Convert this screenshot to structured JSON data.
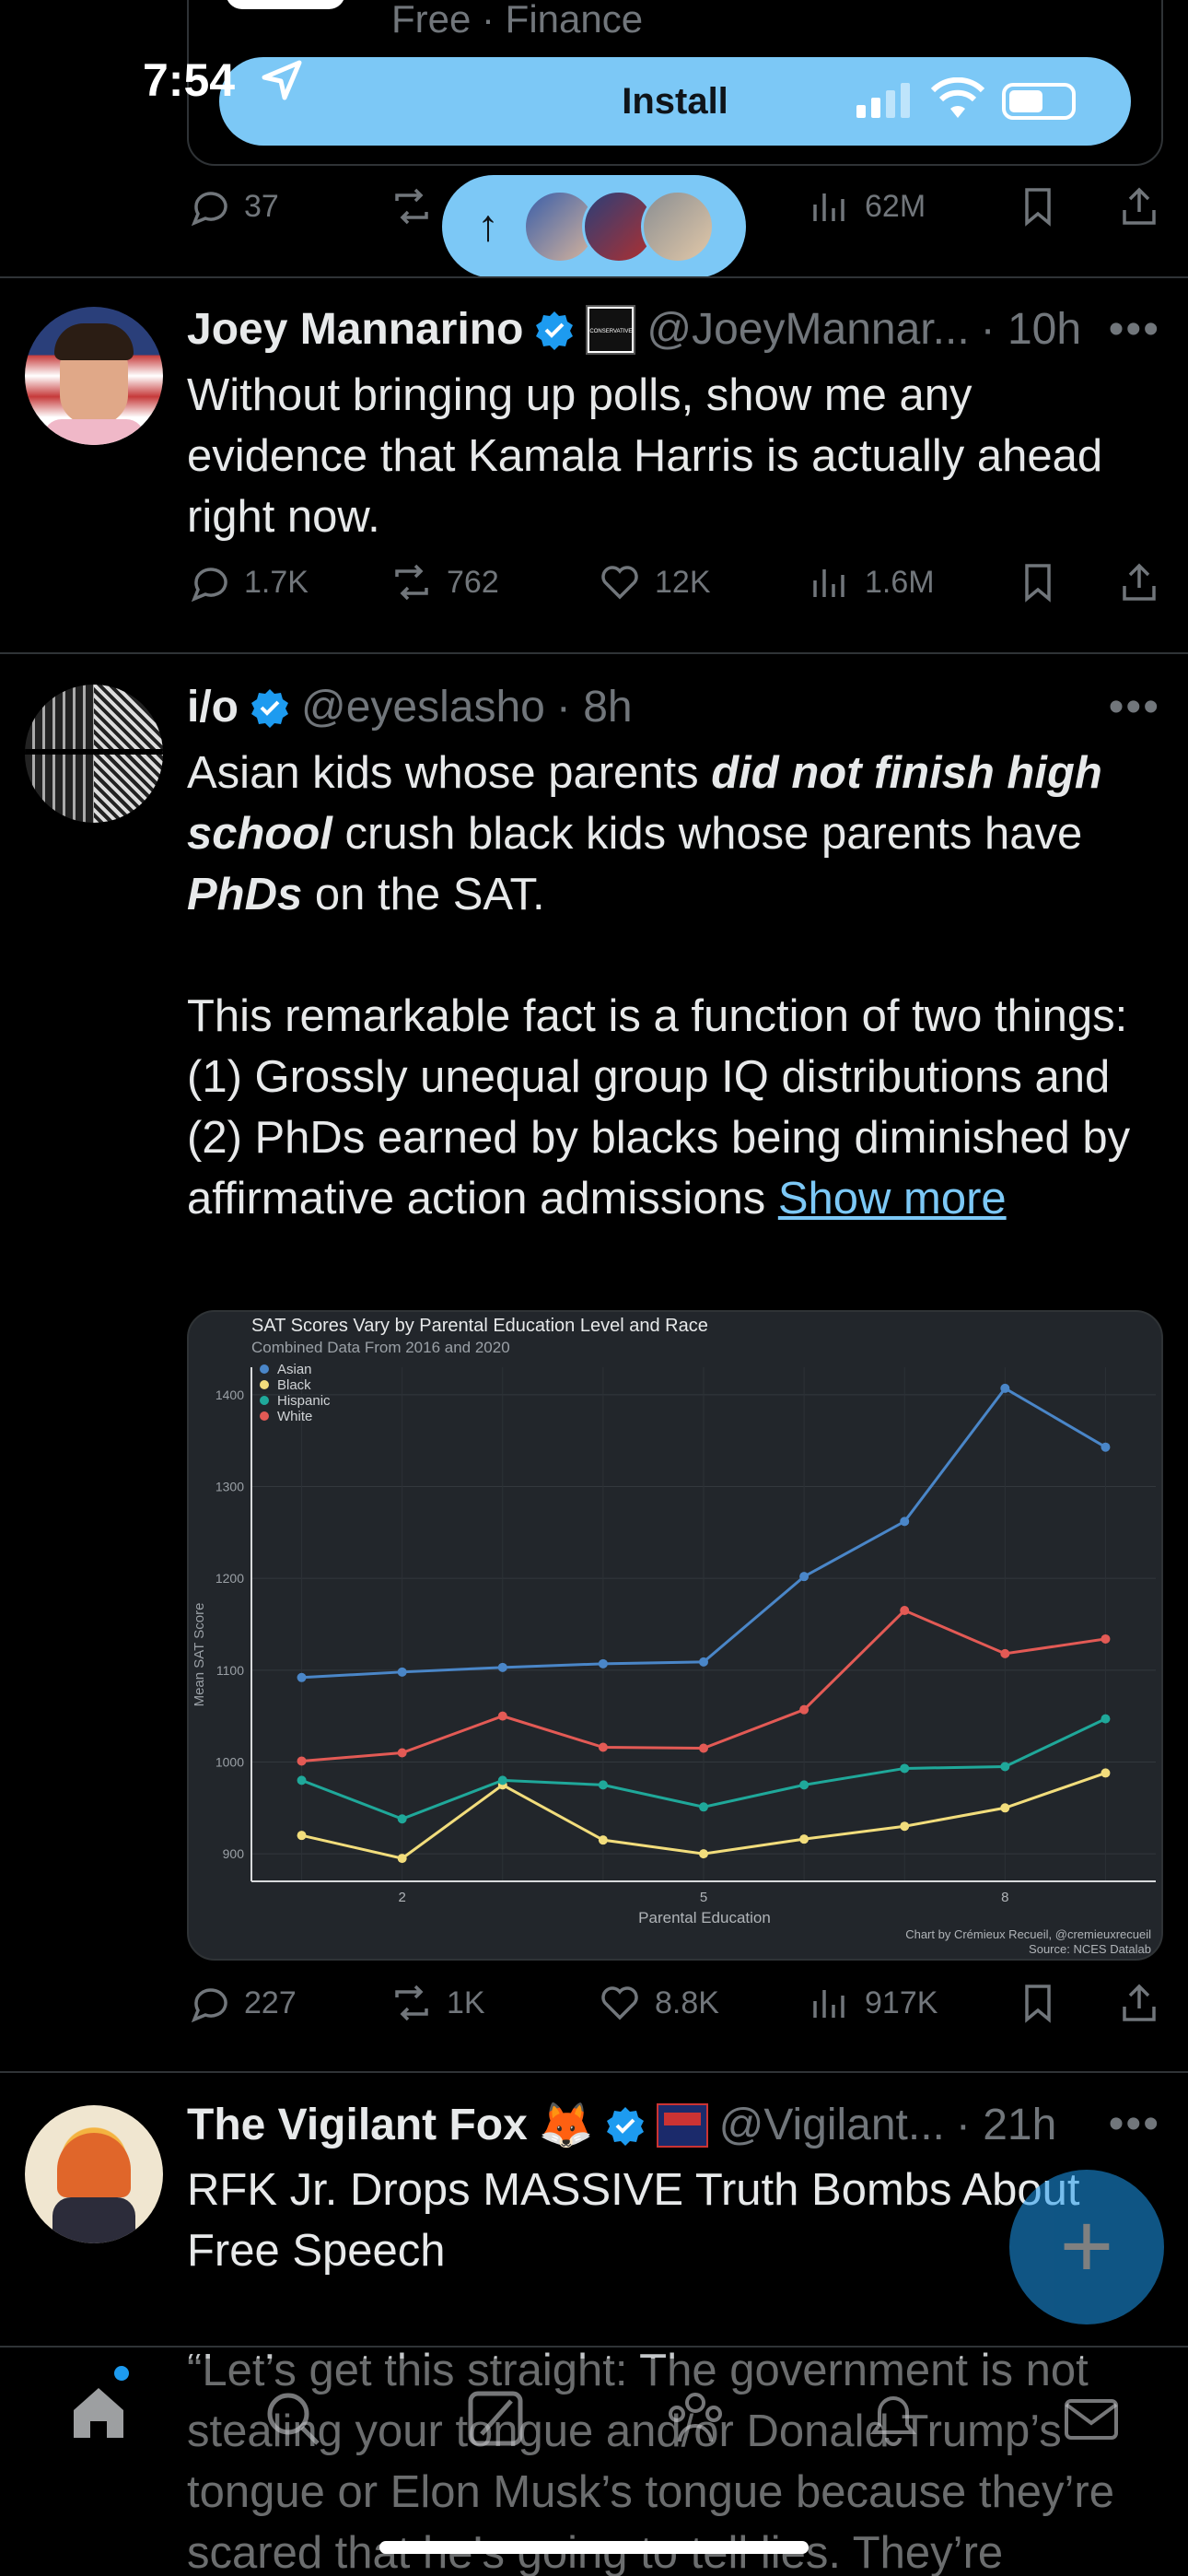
{
  "prev_tweet": {
    "card_subtitle": "Free · Finance",
    "actions": {
      "replies": "37",
      "views": "62M"
    }
  },
  "status_bar": {
    "time": "7:54"
  },
  "install_banner": {
    "label": "Install"
  },
  "tweets": [
    {
      "name": "Joey Mannarino",
      "badge": "CONSERVATIVE",
      "handle": "@JoeyMannar...",
      "time": "· 10h",
      "text": "Without bringing up polls, show me any evidence that Kamala Harris is actually ahead right now.",
      "actions": {
        "replies": "1.7K",
        "reposts": "762",
        "likes": "12K",
        "views": "1.6M"
      }
    },
    {
      "name": "i/o",
      "handle": "@eyeslasho",
      "time": "· 8h",
      "text_parts": {
        "p1a": "Asian kids whose parents ",
        "p1b": "did not finish high school",
        "p1c": " crush black kids whose parents have ",
        "p1d": "PhDs",
        "p1e": " on the SAT.",
        "p2": "This remarkable fact is a function of two things: (1) Grossly unequal group IQ distributions and (2) PhDs earned by blacks being diminished by affirmative action admissions ",
        "show_more": "Show more"
      },
      "actions": {
        "replies": "227",
        "reposts": "1K",
        "likes": "8.8K",
        "views": "917K"
      }
    },
    {
      "name": "The Vigilant Fox",
      "emoji": "🦊",
      "handle": "@Vigilant...",
      "time": "· 21h",
      "text": "RFK Jr. Drops MASSIVE Truth Bombs About Free Speech",
      "quote": "“Let’s get this straight: The government is not stealing your tongue and/or Donald Trump’s tongue or Elon Musk’s tongue because they’re scared that he’s going to tell lies. They’re"
    }
  ],
  "chart_data": {
    "type": "line",
    "title": "SAT Scores Vary by Parental Education Level and Race",
    "subtitle": "Combined Data From 2016 and 2020",
    "xlabel": "Parental Education",
    "ylabel": "Mean SAT Score",
    "x": [
      1,
      2,
      3,
      4,
      5,
      6,
      7,
      8,
      9
    ],
    "x_ticks": [
      2,
      5,
      8
    ],
    "y_ticks": [
      900,
      1000,
      1100,
      1200,
      1300,
      1400
    ],
    "xlim": [
      0.5,
      9.5
    ],
    "ylim": [
      870,
      1430
    ],
    "legend_position": "top-left",
    "grid": true,
    "series": [
      {
        "name": "Asian",
        "color": "#4a86c8",
        "values": [
          1092,
          1098,
          1103,
          1107,
          1109,
          1202,
          1262,
          1407,
          1343
        ]
      },
      {
        "name": "Black",
        "color": "#f2dd7c",
        "values": [
          920,
          895,
          975,
          915,
          900,
          916,
          930,
          950,
          988
        ]
      },
      {
        "name": "Hispanic",
        "color": "#1fa89a",
        "values": [
          980,
          938,
          980,
          975,
          951,
          975,
          993,
          995,
          1047
        ]
      },
      {
        "name": "White",
        "color": "#e35a55",
        "values": [
          1001,
          1010,
          1050,
          1016,
          1015,
          1057,
          1165,
          1118,
          1134
        ]
      }
    ],
    "credit": "Chart by Crémieux Recueil, @cremieuxrecueil",
    "source": "Source: NCES Datalab"
  }
}
